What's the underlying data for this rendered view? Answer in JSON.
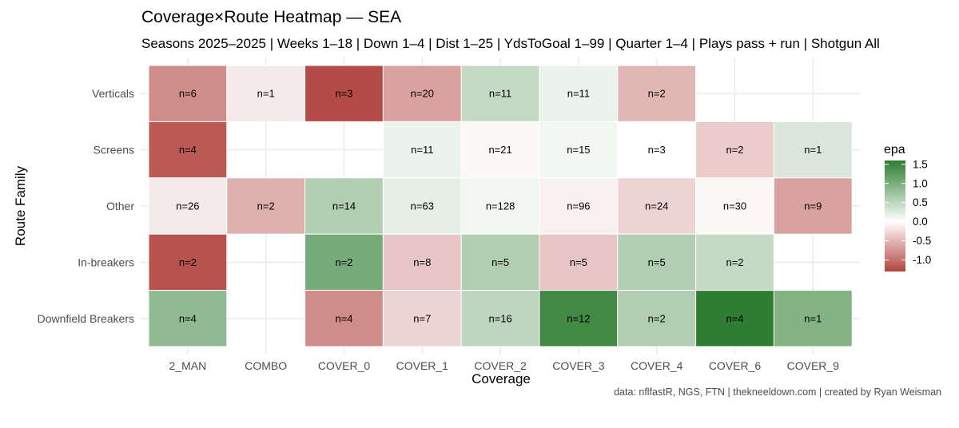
{
  "chart_data": {
    "type": "heatmap",
    "title": "Coverage×Route Heatmap — SEA",
    "subtitle": "Seasons 2025–2025 | Weeks 1–18 | Down 1–4 | Dist 1–25 | YdsToGoal 1–99 | Quarter 1–4 | Plays pass + run | Shotgun All",
    "xlabel": "Coverage",
    "ylabel": "Route Family",
    "caption": "data: nflfastR, NGS, FTN | thekneeldown.com | created by Ryan Weisman",
    "x_categories": [
      "2_MAN",
      "COMBO",
      "COVER_0",
      "COVER_1",
      "COVER_2",
      "COVER_3",
      "COVER_4",
      "COVER_6",
      "COVER_9"
    ],
    "y_categories": [
      "Verticals",
      "Screens",
      "Other",
      "In-breakers",
      "Downfield Breakers"
    ],
    "legend": {
      "title": "epa",
      "ticks": [
        "1.5",
        "1.0",
        "0.5",
        "0.0",
        "-0.5",
        "-1.0"
      ],
      "range": [
        -1.3,
        1.6
      ],
      "position": "right"
    },
    "colors": {
      "low": "#b2443f",
      "mid": "#ffffff",
      "high": "#2e7d32"
    },
    "grid": true,
    "cells": [
      {
        "route": "Verticals",
        "coverage": "2_MAN",
        "epa": -0.8,
        "label": "n=6"
      },
      {
        "route": "Verticals",
        "coverage": "COMBO",
        "epa": -0.15,
        "label": "n=1"
      },
      {
        "route": "Verticals",
        "coverage": "COVER_0",
        "epa": -1.25,
        "label": "n=3"
      },
      {
        "route": "Verticals",
        "coverage": "COVER_1",
        "epa": -0.65,
        "label": "n=20"
      },
      {
        "route": "Verticals",
        "coverage": "COVER_2",
        "epa": 0.45,
        "label": "n=11"
      },
      {
        "route": "Verticals",
        "coverage": "COVER_3",
        "epa": 0.15,
        "label": "n=11"
      },
      {
        "route": "Verticals",
        "coverage": "COVER_4",
        "epa": -0.5,
        "label": "n=2"
      },
      {
        "route": "Screens",
        "coverage": "2_MAN",
        "epa": -1.15,
        "label": "n=4"
      },
      {
        "route": "Screens",
        "coverage": "COVER_1",
        "epa": 0.15,
        "label": "n=11"
      },
      {
        "route": "Screens",
        "coverage": "COVER_2",
        "epa": -0.05,
        "label": "n=21"
      },
      {
        "route": "Screens",
        "coverage": "COVER_3",
        "epa": 0.1,
        "label": "n=15"
      },
      {
        "route": "Screens",
        "coverage": "COVER_4",
        "epa": 0.0,
        "label": "n=3"
      },
      {
        "route": "Screens",
        "coverage": "COVER_6",
        "epa": -0.35,
        "label": "n=2"
      },
      {
        "route": "Screens",
        "coverage": "COVER_9",
        "epa": 0.3,
        "label": "n=1"
      },
      {
        "route": "Other",
        "coverage": "2_MAN",
        "epa": -0.15,
        "label": "n=26"
      },
      {
        "route": "Other",
        "coverage": "COMBO",
        "epa": -0.55,
        "label": "n=2"
      },
      {
        "route": "Other",
        "coverage": "COVER_0",
        "epa": 0.6,
        "label": "n=14"
      },
      {
        "route": "Other",
        "coverage": "COVER_1",
        "epa": 0.2,
        "label": "n=63"
      },
      {
        "route": "Other",
        "coverage": "COVER_2",
        "epa": 0.1,
        "label": "n=128"
      },
      {
        "route": "Other",
        "coverage": "COVER_3",
        "epa": -0.1,
        "label": "n=96"
      },
      {
        "route": "Other",
        "coverage": "COVER_4",
        "epa": -0.3,
        "label": "n=24"
      },
      {
        "route": "Other",
        "coverage": "COVER_6",
        "epa": -0.05,
        "label": "n=30"
      },
      {
        "route": "Other",
        "coverage": "COVER_9",
        "epa": -0.65,
        "label": "n=9"
      },
      {
        "route": "In-breakers",
        "coverage": "2_MAN",
        "epa": -1.2,
        "label": "n=2"
      },
      {
        "route": "In-breakers",
        "coverage": "COVER_0",
        "epa": 1.05,
        "label": "n=2"
      },
      {
        "route": "In-breakers",
        "coverage": "COVER_1",
        "epa": -0.4,
        "label": "n=8"
      },
      {
        "route": "In-breakers",
        "coverage": "COVER_2",
        "epa": 0.6,
        "label": "n=5"
      },
      {
        "route": "In-breakers",
        "coverage": "COVER_3",
        "epa": -0.4,
        "label": "n=5"
      },
      {
        "route": "In-breakers",
        "coverage": "COVER_4",
        "epa": 0.6,
        "label": "n=5"
      },
      {
        "route": "In-breakers",
        "coverage": "COVER_6",
        "epa": 0.45,
        "label": "n=2"
      },
      {
        "route": "Downfield Breakers",
        "coverage": "2_MAN",
        "epa": 0.85,
        "label": "n=4"
      },
      {
        "route": "Downfield Breakers",
        "coverage": "COVER_0",
        "epa": -0.8,
        "label": "n=4"
      },
      {
        "route": "Downfield Breakers",
        "coverage": "COVER_1",
        "epa": -0.3,
        "label": "n=7"
      },
      {
        "route": "Downfield Breakers",
        "coverage": "COVER_2",
        "epa": 0.5,
        "label": "n=16"
      },
      {
        "route": "Downfield Breakers",
        "coverage": "COVER_3",
        "epa": 1.45,
        "label": "n=12"
      },
      {
        "route": "Downfield Breakers",
        "coverage": "COVER_4",
        "epa": 0.6,
        "label": "n=2"
      },
      {
        "route": "Downfield Breakers",
        "coverage": "COVER_6",
        "epa": 1.6,
        "label": "n=4"
      },
      {
        "route": "Downfield Breakers",
        "coverage": "COVER_9",
        "epa": 0.95,
        "label": "n=1"
      }
    ]
  }
}
